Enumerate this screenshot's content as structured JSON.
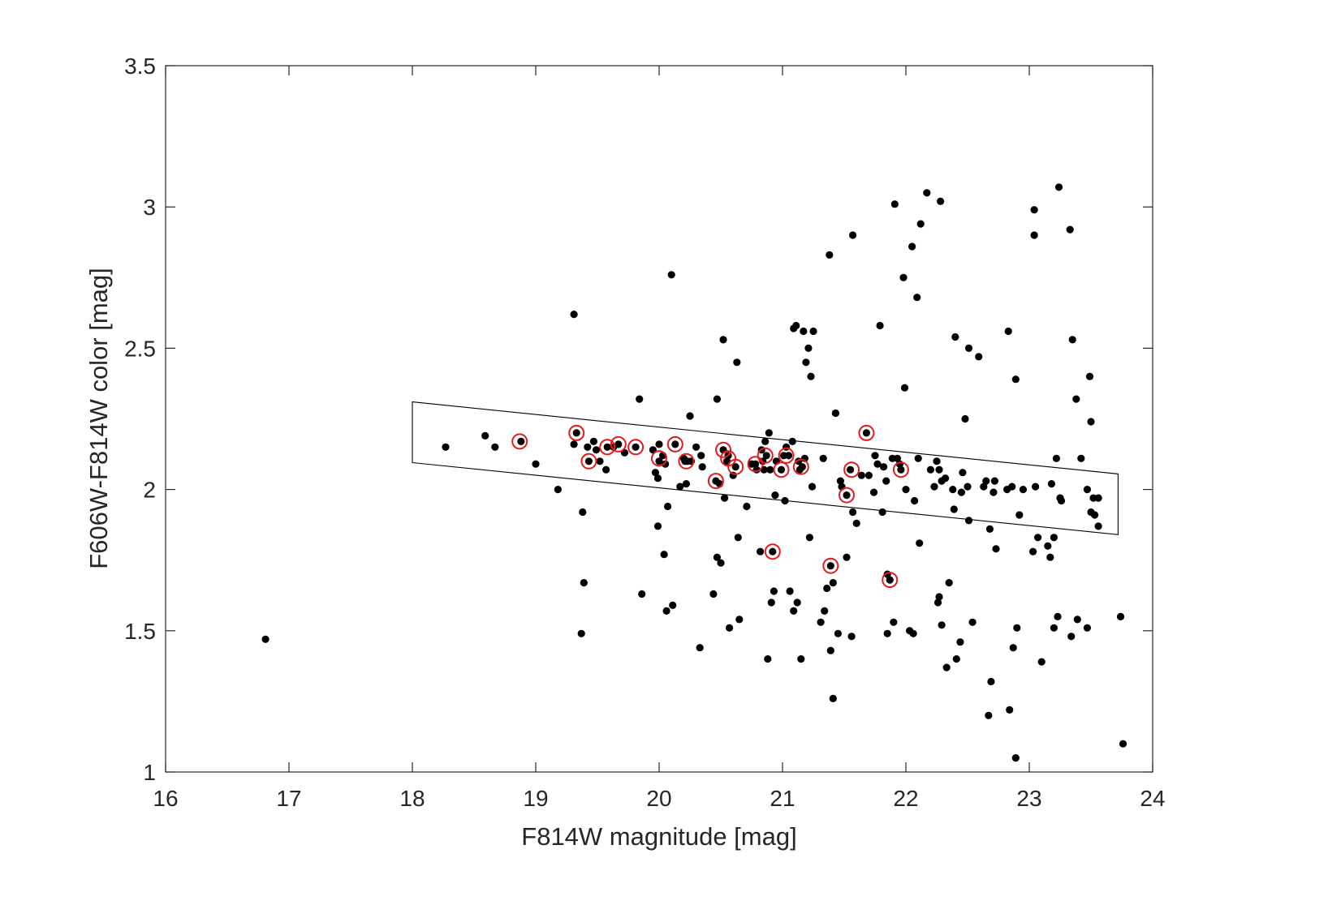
{
  "chart_data": {
    "type": "scatter",
    "title": "",
    "xlabel": "F814W magnitude [mag]",
    "ylabel": "F606W-F814W color [mag]",
    "xlim": [
      16,
      24
    ],
    "ylim": [
      1,
      3.5
    ],
    "x_ticks": [
      "16",
      "17",
      "18",
      "19",
      "20",
      "21",
      "22",
      "23",
      "24"
    ],
    "y_ticks": [
      "1",
      "1.5",
      "2",
      "2.5",
      "3",
      "3.5"
    ],
    "grid": false,
    "legend": "none",
    "colors": {
      "points": "#000000",
      "highlight_circles": "#e41a1c",
      "box": "#000000",
      "axes": "#262626"
    },
    "selection_box": {
      "vertices": [
        [
          18.0,
          2.31
        ],
        [
          23.72,
          2.055
        ],
        [
          23.72,
          1.84
        ],
        [
          18.0,
          2.095
        ]
      ]
    },
    "series": [
      {
        "marker": "filled-circle",
        "color": "#000000",
        "points": [
          [
            16.81,
            1.47
          ],
          [
            18.27,
            2.15
          ],
          [
            18.59,
            2.19
          ],
          [
            18.67,
            2.15
          ],
          [
            18.88,
            2.17
          ],
          [
            19.0,
            2.09
          ],
          [
            19.18,
            2.0
          ],
          [
            19.31,
            2.62
          ],
          [
            19.31,
            2.16
          ],
          [
            19.33,
            2.2
          ],
          [
            19.37,
            1.49
          ],
          [
            19.38,
            1.92
          ],
          [
            19.39,
            1.67
          ],
          [
            19.42,
            2.15
          ],
          [
            19.43,
            2.1
          ],
          [
            19.47,
            2.17
          ],
          [
            19.49,
            2.14
          ],
          [
            19.52,
            2.1
          ],
          [
            19.57,
            2.07
          ],
          [
            19.58,
            2.15
          ],
          [
            19.63,
            2.15
          ],
          [
            19.67,
            2.16
          ],
          [
            19.72,
            2.13
          ],
          [
            19.81,
            2.15
          ],
          [
            19.84,
            2.32
          ],
          [
            19.86,
            1.63
          ],
          [
            19.95,
            2.14
          ],
          [
            19.97,
            2.06
          ],
          [
            19.99,
            2.04
          ],
          [
            19.99,
            1.87
          ],
          [
            20.0,
            2.16
          ],
          [
            20.0,
            2.1
          ],
          [
            20.03,
            2.12
          ],
          [
            20.04,
            1.77
          ],
          [
            20.05,
            2.09
          ],
          [
            20.06,
            1.57
          ],
          [
            20.07,
            1.94
          ],
          [
            20.1,
            2.76
          ],
          [
            20.11,
            1.59
          ],
          [
            20.13,
            2.16
          ],
          [
            20.17,
            2.01
          ],
          [
            20.2,
            2.11
          ],
          [
            20.21,
            2.1
          ],
          [
            20.22,
            2.02
          ],
          [
            20.23,
            2.1
          ],
          [
            20.25,
            2.26
          ],
          [
            20.26,
            2.1
          ],
          [
            20.3,
            2.15
          ],
          [
            20.33,
            1.44
          ],
          [
            20.34,
            2.12
          ],
          [
            20.35,
            2.08
          ],
          [
            20.44,
            1.63
          ],
          [
            20.46,
            2.03
          ],
          [
            20.47,
            1.76
          ],
          [
            20.47,
            2.32
          ],
          [
            20.49,
            2.02
          ],
          [
            20.5,
            1.74
          ],
          [
            20.52,
            2.14
          ],
          [
            20.52,
            2.53
          ],
          [
            20.53,
            1.97
          ],
          [
            20.55,
            2.1
          ],
          [
            20.56,
            2.12
          ],
          [
            20.57,
            1.51
          ],
          [
            20.6,
            2.05
          ],
          [
            20.62,
            2.08
          ],
          [
            20.63,
            2.45
          ],
          [
            20.64,
            1.83
          ],
          [
            20.65,
            1.54
          ],
          [
            20.71,
            1.94
          ],
          [
            20.75,
            2.09
          ],
          [
            20.78,
            2.09
          ],
          [
            20.79,
            2.07
          ],
          [
            20.82,
            1.78
          ],
          [
            20.83,
            2.14
          ],
          [
            20.84,
            2.1
          ],
          [
            20.85,
            2.07
          ],
          [
            20.86,
            2.17
          ],
          [
            20.87,
            2.12
          ],
          [
            20.88,
            1.4
          ],
          [
            20.89,
            2.2
          ],
          [
            20.9,
            2.07
          ],
          [
            20.91,
            1.6
          ],
          [
            20.92,
            1.78
          ],
          [
            20.93,
            1.64
          ],
          [
            20.94,
            1.98
          ],
          [
            20.95,
            2.1
          ],
          [
            20.99,
            2.07
          ],
          [
            21.01,
            2.12
          ],
          [
            21.02,
            1.96
          ],
          [
            21.03,
            2.15
          ],
          [
            21.05,
            2.12
          ],
          [
            21.06,
            1.64
          ],
          [
            21.08,
            2.17
          ],
          [
            21.09,
            1.57
          ],
          [
            21.09,
            2.57
          ],
          [
            21.11,
            2.58
          ],
          [
            21.12,
            1.6
          ],
          [
            21.13,
            2.1
          ],
          [
            21.14,
            2.07
          ],
          [
            21.15,
            1.4
          ],
          [
            21.16,
            2.08
          ],
          [
            21.17,
            2.56
          ],
          [
            21.18,
            2.11
          ],
          [
            21.19,
            2.45
          ],
          [
            21.21,
            2.5
          ],
          [
            21.22,
            1.83
          ],
          [
            21.23,
            2.4
          ],
          [
            21.24,
            2.01
          ],
          [
            21.25,
            2.56
          ],
          [
            21.31,
            1.53
          ],
          [
            21.33,
            2.11
          ],
          [
            21.34,
            1.57
          ],
          [
            21.36,
            1.65
          ],
          [
            21.38,
            2.83
          ],
          [
            21.39,
            1.73
          ],
          [
            21.39,
            1.43
          ],
          [
            21.41,
            1.26
          ],
          [
            21.41,
            1.67
          ],
          [
            21.43,
            2.27
          ],
          [
            21.45,
            1.49
          ],
          [
            21.47,
            2.03
          ],
          [
            21.48,
            2.01
          ],
          [
            21.52,
            1.98
          ],
          [
            21.52,
            1.76
          ],
          [
            21.55,
            2.07
          ],
          [
            21.56,
            1.48
          ],
          [
            21.57,
            1.92
          ],
          [
            21.57,
            2.9
          ],
          [
            21.6,
            1.88
          ],
          [
            21.64,
            2.05
          ],
          [
            21.68,
            2.2
          ],
          [
            21.7,
            2.05
          ],
          [
            21.74,
            1.99
          ],
          [
            21.75,
            2.12
          ],
          [
            21.77,
            2.09
          ],
          [
            21.79,
            2.58
          ],
          [
            21.81,
            1.92
          ],
          [
            21.82,
            2.08
          ],
          [
            21.84,
            2.03
          ],
          [
            21.85,
            1.49
          ],
          [
            21.85,
            1.7
          ],
          [
            21.87,
            1.68
          ],
          [
            21.89,
            2.11
          ],
          [
            21.9,
            1.53
          ],
          [
            21.91,
            3.01
          ],
          [
            21.93,
            2.11
          ],
          [
            21.95,
            2.09
          ],
          [
            21.96,
            2.07
          ],
          [
            21.98,
            2.75
          ],
          [
            21.99,
            2.36
          ],
          [
            22.0,
            2.0
          ],
          [
            22.03,
            1.5
          ],
          [
            22.05,
            2.86
          ],
          [
            22.06,
            1.49
          ],
          [
            22.07,
            1.96
          ],
          [
            22.09,
            2.68
          ],
          [
            22.1,
            2.11
          ],
          [
            22.11,
            1.81
          ],
          [
            22.12,
            2.94
          ],
          [
            22.17,
            3.05
          ],
          [
            22.2,
            2.07
          ],
          [
            22.23,
            2.01
          ],
          [
            22.25,
            2.1
          ],
          [
            22.26,
            1.6
          ],
          [
            22.27,
            2.07
          ],
          [
            22.27,
            1.62
          ],
          [
            22.28,
            3.02
          ],
          [
            22.29,
            1.52
          ],
          [
            22.29,
            2.03
          ],
          [
            22.32,
            2.04
          ],
          [
            22.33,
            1.37
          ],
          [
            22.35,
            1.67
          ],
          [
            22.38,
            2.0
          ],
          [
            22.39,
            1.93
          ],
          [
            22.4,
            2.54
          ],
          [
            22.41,
            1.4
          ],
          [
            22.44,
            1.46
          ],
          [
            22.45,
            1.99
          ],
          [
            22.46,
            2.06
          ],
          [
            22.48,
            2.25
          ],
          [
            22.5,
            2.01
          ],
          [
            22.51,
            2.5
          ],
          [
            22.51,
            1.89
          ],
          [
            22.54,
            1.53
          ],
          [
            22.59,
            2.47
          ],
          [
            22.63,
            2.01
          ],
          [
            22.65,
            2.03
          ],
          [
            22.67,
            1.2
          ],
          [
            22.68,
            1.86
          ],
          [
            22.69,
            1.32
          ],
          [
            22.71,
            1.99
          ],
          [
            22.72,
            2.03
          ],
          [
            22.73,
            1.79
          ],
          [
            22.82,
            2.0
          ],
          [
            22.83,
            2.56
          ],
          [
            22.84,
            1.22
          ],
          [
            22.86,
            2.01
          ],
          [
            22.87,
            1.44
          ],
          [
            22.89,
            2.39
          ],
          [
            22.89,
            1.05
          ],
          [
            22.9,
            1.51
          ],
          [
            22.92,
            1.91
          ],
          [
            22.95,
            2.0
          ],
          [
            23.03,
            1.78
          ],
          [
            23.04,
            2.9
          ],
          [
            23.04,
            2.99
          ],
          [
            23.05,
            2.01
          ],
          [
            23.07,
            1.83
          ],
          [
            23.1,
            1.39
          ],
          [
            23.15,
            1.8
          ],
          [
            23.17,
            1.76
          ],
          [
            23.18,
            2.02
          ],
          [
            23.2,
            1.83
          ],
          [
            23.2,
            1.51
          ],
          [
            23.22,
            2.11
          ],
          [
            23.23,
            1.55
          ],
          [
            23.24,
            3.07
          ],
          [
            23.25,
            1.97
          ],
          [
            23.26,
            1.96
          ],
          [
            23.33,
            2.92
          ],
          [
            23.34,
            1.48
          ],
          [
            23.35,
            2.53
          ],
          [
            23.38,
            2.32
          ],
          [
            23.39,
            1.54
          ],
          [
            23.42,
            2.11
          ],
          [
            23.47,
            1.51
          ],
          [
            23.47,
            2.0
          ],
          [
            23.49,
            2.4
          ],
          [
            23.5,
            2.24
          ],
          [
            23.5,
            1.92
          ],
          [
            23.52,
            1.97
          ],
          [
            23.53,
            1.91
          ],
          [
            23.56,
            1.97
          ],
          [
            23.56,
            1.87
          ],
          [
            23.74,
            1.55
          ],
          [
            23.76,
            1.1
          ]
        ]
      },
      {
        "marker": "open-circle",
        "color": "#e41a1c",
        "points": [
          [
            18.87,
            2.17
          ],
          [
            19.33,
            2.2
          ],
          [
            19.43,
            2.1
          ],
          [
            19.58,
            2.15
          ],
          [
            19.67,
            2.16
          ],
          [
            19.81,
            2.15
          ],
          [
            20.0,
            2.11
          ],
          [
            20.13,
            2.16
          ],
          [
            20.22,
            2.1
          ],
          [
            20.46,
            2.03
          ],
          [
            20.52,
            2.14
          ],
          [
            20.56,
            2.11
          ],
          [
            20.62,
            2.08
          ],
          [
            20.78,
            2.09
          ],
          [
            20.86,
            2.12
          ],
          [
            20.92,
            1.78
          ],
          [
            20.99,
            2.07
          ],
          [
            21.03,
            2.12
          ],
          [
            21.15,
            2.08
          ],
          [
            21.39,
            1.73
          ],
          [
            21.52,
            1.98
          ],
          [
            21.56,
            2.07
          ],
          [
            21.68,
            2.2
          ],
          [
            21.87,
            1.68
          ],
          [
            21.96,
            2.07
          ]
        ]
      }
    ]
  }
}
